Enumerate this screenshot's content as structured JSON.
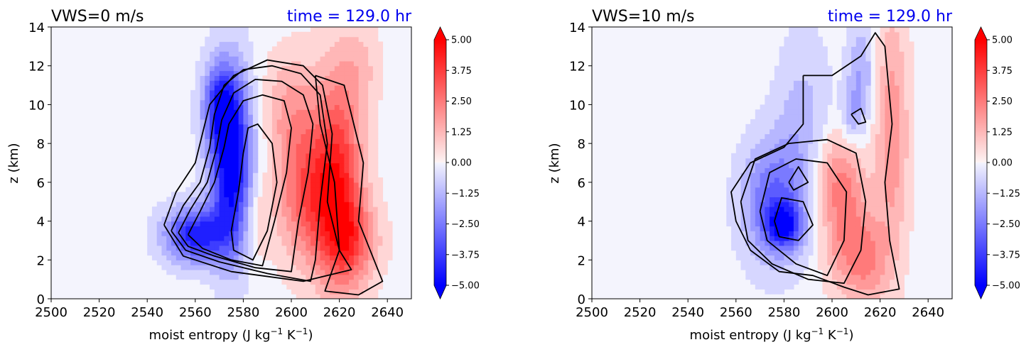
{
  "colors": {
    "positive": "#ff0000",
    "negative": "#0000ff",
    "contour": "#000000",
    "time_text": "#0000ee"
  },
  "chart_data": [
    {
      "type": "heatmap",
      "title": "VWS=0 m/s",
      "time_label": "time = 129.0 hr",
      "xlabel": "moist entropy (J kg",
      "xlabel_sup1": "−1",
      "xlabel_mid": " K",
      "xlabel_sup2": "−1",
      "xlabel_end": ")",
      "ylabel": "z (km)",
      "xlim": [
        2500,
        2650
      ],
      "ylim": [
        0,
        14
      ],
      "xticks": [
        "2500",
        "2520",
        "2540",
        "2560",
        "2580",
        "2600",
        "2620",
        "2640"
      ],
      "yticks": [
        "0",
        "2",
        "4",
        "6",
        "8",
        "10",
        "12",
        "14"
      ],
      "colorbar_ticks": [
        "5.00",
        "3.75",
        "2.50",
        "1.25",
        "0.00",
        "−1.25",
        "−2.50",
        "−3.75",
        "−5.00"
      ],
      "colorbar_range": [
        -5,
        5
      ],
      "field_blobs": [
        {
          "x": 2575,
          "y": 7.0,
          "sx": 6,
          "sy": 3.2,
          "amp": -5.5
        },
        {
          "x": 2560,
          "y": 3.3,
          "sx": 9,
          "sy": 1.0,
          "amp": -4.5
        },
        {
          "x": 2570,
          "y": 10.0,
          "sx": 5,
          "sy": 1.5,
          "amp": -3.0
        },
        {
          "x": 2607,
          "y": 5.5,
          "sx": 9,
          "sy": 2.5,
          "amp": 3.2
        },
        {
          "x": 2620,
          "y": 6.5,
          "sx": 7,
          "sy": 4.0,
          "amp": 3.5
        },
        {
          "x": 2625,
          "y": 3.0,
          "sx": 8,
          "sy": 1.6,
          "amp": 2.5
        },
        {
          "x": 2600,
          "y": 10.0,
          "sx": 8,
          "sy": 2.0,
          "amp": 1.5
        },
        {
          "x": 2585,
          "y": 4.0,
          "sx": 4,
          "sy": 1.5,
          "amp": 1.0
        },
        {
          "x": 2630,
          "y": 12.0,
          "sx": 6,
          "sy": 1.5,
          "amp": 0.8
        }
      ],
      "contours": [
        [
          [
            2550,
            3.5
          ],
          [
            2555,
            4.8
          ],
          [
            2562,
            6.0
          ],
          [
            2566,
            7.8
          ],
          [
            2568,
            9.5
          ],
          [
            2572,
            11.0
          ],
          [
            2580,
            11.8
          ],
          [
            2592,
            12.0
          ],
          [
            2604,
            11.6
          ],
          [
            2612,
            10.5
          ],
          [
            2615,
            8.0
          ],
          [
            2612,
            5.0
          ],
          [
            2610,
            2.0
          ],
          [
            2608,
            0.9
          ],
          [
            2590,
            1.3
          ],
          [
            2570,
            1.9
          ],
          [
            2556,
            2.5
          ],
          [
            2550,
            3.5
          ]
        ],
        [
          [
            2553,
            3.4
          ],
          [
            2558,
            4.6
          ],
          [
            2565,
            6.0
          ],
          [
            2569,
            7.8
          ],
          [
            2571,
            9.2
          ],
          [
            2576,
            10.6
          ],
          [
            2585,
            11.3
          ],
          [
            2596,
            11.2
          ],
          [
            2605,
            10.5
          ],
          [
            2609,
            9.0
          ],
          [
            2607,
            6.5
          ],
          [
            2603,
            4.0
          ],
          [
            2600,
            1.4
          ],
          [
            2585,
            1.6
          ],
          [
            2568,
            2.2
          ],
          [
            2557,
            2.7
          ],
          [
            2553,
            3.4
          ]
        ],
        [
          [
            2557,
            3.3
          ],
          [
            2562,
            4.5
          ],
          [
            2568,
            6.0
          ],
          [
            2572,
            7.8
          ],
          [
            2574,
            9.0
          ],
          [
            2580,
            10.2
          ],
          [
            2588,
            10.5
          ],
          [
            2597,
            10.2
          ],
          [
            2600,
            8.8
          ],
          [
            2598,
            6.5
          ],
          [
            2593,
            4.0
          ],
          [
            2588,
            1.7
          ],
          [
            2575,
            2.0
          ],
          [
            2563,
            2.6
          ],
          [
            2557,
            3.3
          ]
        ],
        [
          [
            2575,
            3.5
          ],
          [
            2578,
            5.5
          ],
          [
            2580,
            7.5
          ],
          [
            2582,
            8.8
          ],
          [
            2586,
            9.0
          ],
          [
            2592,
            8.0
          ],
          [
            2594,
            6.0
          ],
          [
            2590,
            3.5
          ],
          [
            2584,
            2.0
          ],
          [
            2576,
            2.5
          ],
          [
            2575,
            3.5
          ]
        ],
        [
          [
            2547,
            3.8
          ],
          [
            2552,
            5.5
          ],
          [
            2560,
            7.0
          ],
          [
            2563,
            8.5
          ],
          [
            2566,
            10.0
          ],
          [
            2576,
            11.5
          ],
          [
            2590,
            12.3
          ],
          [
            2605,
            12.0
          ],
          [
            2613,
            11.0
          ],
          [
            2617,
            8.5
          ],
          [
            2615,
            5.0
          ],
          [
            2620,
            2.5
          ],
          [
            2625,
            1.5
          ],
          [
            2605,
            0.9
          ],
          [
            2575,
            1.4
          ],
          [
            2555,
            2.2
          ],
          [
            2547,
            3.8
          ]
        ],
        [
          [
            2610,
            11.5
          ],
          [
            2622,
            11.0
          ],
          [
            2630,
            7.0
          ],
          [
            2628,
            4.0
          ],
          [
            2638,
            0.9
          ],
          [
            2628,
            0.2
          ],
          [
            2614,
            0.4
          ],
          [
            2620,
            2.5
          ],
          [
            2618,
            6.0
          ],
          [
            2612,
            9.0
          ],
          [
            2610,
            11.5
          ]
        ]
      ]
    },
    {
      "type": "heatmap",
      "title": "VWS=10 m/s",
      "time_label": "time = 129.0 hr",
      "xlabel": "moist entropy (J kg",
      "xlabel_sup1": "−1",
      "xlabel_mid": " K",
      "xlabel_sup2": "−1",
      "xlabel_end": ")",
      "ylabel": "z (km)",
      "xlim": [
        2500,
        2650
      ],
      "ylim": [
        0,
        14
      ],
      "xticks": [
        "2500",
        "2520",
        "2540",
        "2560",
        "2580",
        "2600",
        "2620",
        "2640"
      ],
      "yticks": [
        "0",
        "2",
        "4",
        "6",
        "8",
        "10",
        "12",
        "14"
      ],
      "colorbar_ticks": [
        "5.00",
        "3.75",
        "2.50",
        "1.25",
        "0.00",
        "−1.25",
        "−2.50",
        "−3.75",
        "−5.00"
      ],
      "colorbar_range": [
        -5,
        5
      ],
      "field_blobs": [
        {
          "x": 2575,
          "y": 5.0,
          "sx": 9,
          "sy": 2.2,
          "amp": -2.8
        },
        {
          "x": 2580,
          "y": 3.8,
          "sx": 5,
          "sy": 0.8,
          "amp": -3.5
        },
        {
          "x": 2588,
          "y": 8.5,
          "sx": 8,
          "sy": 3.5,
          "amp": -1.3
        },
        {
          "x": 2612,
          "y": 11.5,
          "sx": 4,
          "sy": 2.0,
          "amp": -1.6
        },
        {
          "x": 2608,
          "y": 9.5,
          "sx": 3,
          "sy": 1.0,
          "amp": -1.2
        },
        {
          "x": 2605,
          "y": 4.0,
          "sx": 7,
          "sy": 2.5,
          "amp": 2.2
        },
        {
          "x": 2625,
          "y": 8.5,
          "sx": 5,
          "sy": 4.5,
          "amp": 2.0
        },
        {
          "x": 2615,
          "y": 2.0,
          "sx": 6,
          "sy": 1.5,
          "amp": 2.0
        },
        {
          "x": 2600,
          "y": 6.5,
          "sx": 8,
          "sy": 1.5,
          "amp": 1.2
        }
      ],
      "contours": [
        [
          [
            2562,
            5.0
          ],
          [
            2568,
            7.2
          ],
          [
            2582,
            8.0
          ],
          [
            2598,
            8.2
          ],
          [
            2610,
            7.5
          ],
          [
            2614,
            5.0
          ],
          [
            2612,
            2.5
          ],
          [
            2605,
            0.8
          ],
          [
            2590,
            1.0
          ],
          [
            2575,
            1.8
          ],
          [
            2565,
            3.0
          ],
          [
            2562,
            5.0
          ]
        ],
        [
          [
            2570,
            4.5
          ],
          [
            2574,
            6.5
          ],
          [
            2585,
            7.2
          ],
          [
            2598,
            7.0
          ],
          [
            2606,
            5.5
          ],
          [
            2605,
            3.0
          ],
          [
            2598,
            1.2
          ],
          [
            2585,
            1.8
          ],
          [
            2573,
            3.0
          ],
          [
            2570,
            4.5
          ]
        ],
        [
          [
            2576,
            4.0
          ],
          [
            2579,
            5.2
          ],
          [
            2588,
            5.0
          ],
          [
            2592,
            3.8
          ],
          [
            2586,
            3.0
          ],
          [
            2578,
            3.2
          ],
          [
            2576,
            4.0
          ]
        ],
        [
          [
            2582,
            6.0
          ],
          [
            2586,
            6.8
          ],
          [
            2590,
            6.0
          ],
          [
            2584,
            5.6
          ],
          [
            2582,
            6.0
          ]
        ],
        [
          [
            2608,
            9.5
          ],
          [
            2612,
            9.8
          ],
          [
            2614,
            9.1
          ],
          [
            2611,
            9.0
          ],
          [
            2608,
            9.5
          ]
        ],
        [
          [
            2588,
            11.5
          ],
          [
            2600,
            11.5
          ],
          [
            2612,
            12.5
          ],
          [
            2618,
            13.7
          ],
          [
            2622,
            13.0
          ],
          [
            2625,
            9.0
          ],
          [
            2622,
            6.0
          ],
          [
            2624,
            3.0
          ],
          [
            2628,
            0.5
          ],
          [
            2615,
            0.2
          ],
          [
            2605,
            0.6
          ],
          [
            2592,
            1.2
          ],
          [
            2578,
            1.4
          ],
          [
            2566,
            2.5
          ],
          [
            2560,
            4.0
          ],
          [
            2558,
            5.5
          ],
          [
            2566,
            7.0
          ],
          [
            2580,
            7.8
          ],
          [
            2588,
            9.0
          ],
          [
            2588,
            11.5
          ]
        ]
      ]
    }
  ]
}
